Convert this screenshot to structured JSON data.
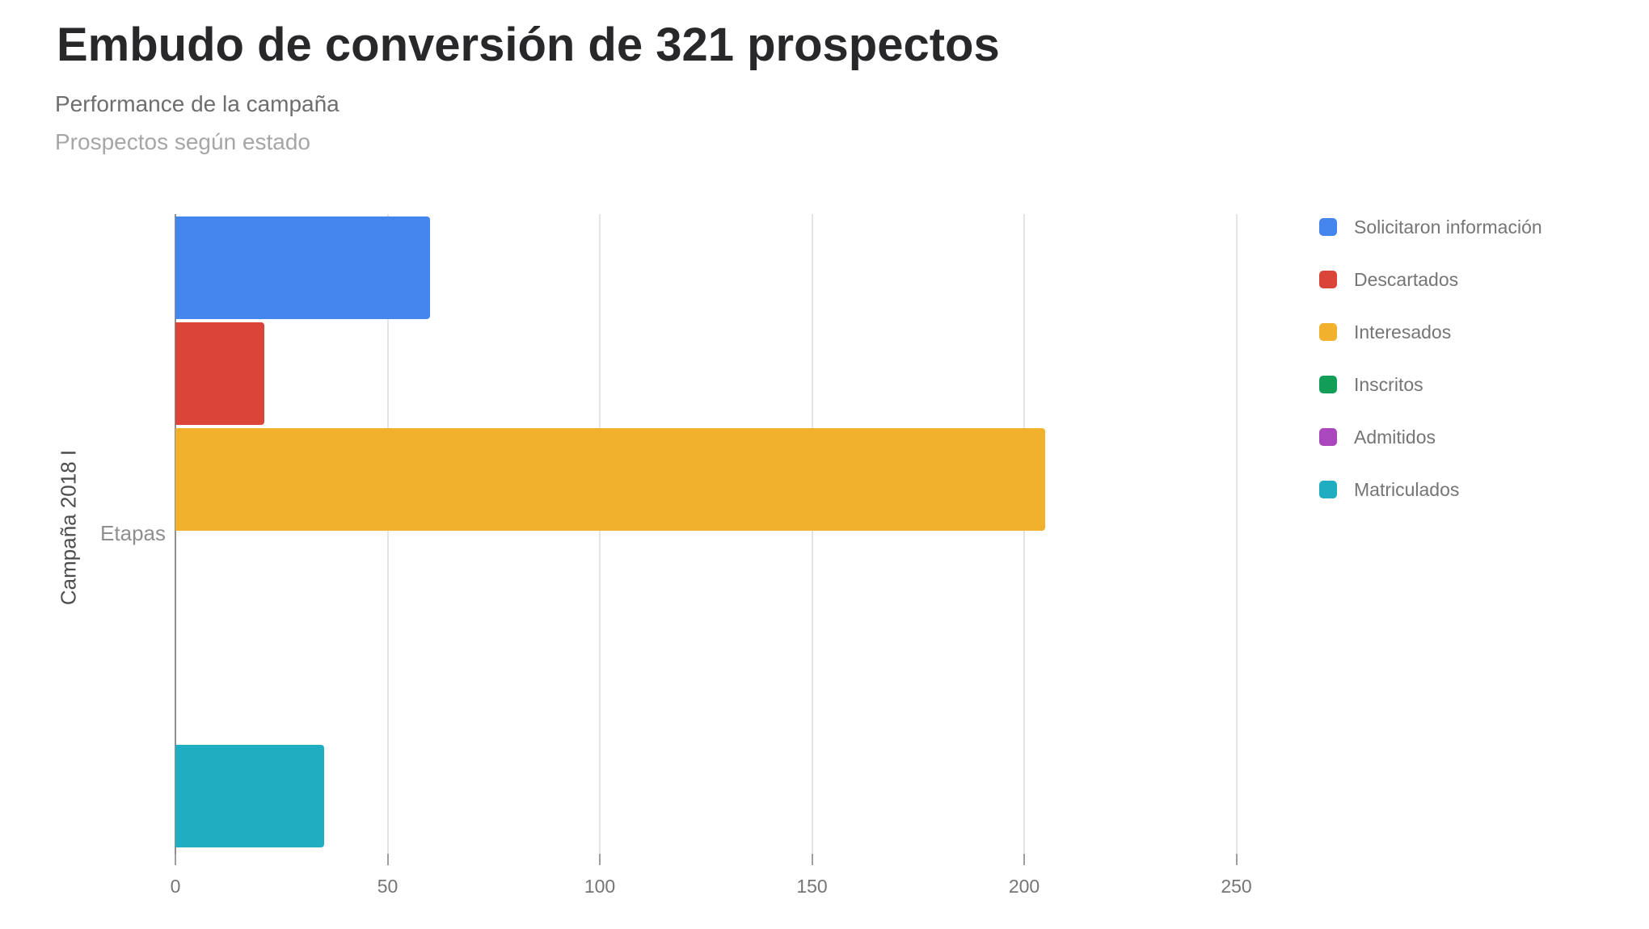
{
  "header": {
    "title": "Embudo de conversión de 321 prospectos",
    "subtitle": "Performance de la campaña",
    "description": "Prospectos según estado"
  },
  "axes": {
    "y_axis_title": "Campaña 2018 I",
    "y_category_label": "Etapas"
  },
  "chart_data": {
    "type": "bar",
    "orientation": "horizontal",
    "title": "Embudo de conversión de 321 prospectos",
    "subtitle": "Performance de la campaña",
    "note": "Prospectos según estado",
    "categories": [
      "Etapas"
    ],
    "y_axis_title": "Campaña 2018 I",
    "series": [
      {
        "name": "Solicitaron información",
        "values": [
          60
        ],
        "color": "#4486EE"
      },
      {
        "name": "Descartados",
        "values": [
          21
        ],
        "color": "#DB4539"
      },
      {
        "name": "Interesados",
        "values": [
          205
        ],
        "color": "#F1B12C"
      },
      {
        "name": "Inscritos",
        "values": [
          0
        ],
        "color": "#129D58"
      },
      {
        "name": "Admitidos",
        "values": [
          0
        ],
        "color": "#AB47BC"
      },
      {
        "name": "Matriculados",
        "values": [
          35
        ],
        "color": "#1EADC1"
      }
    ],
    "x_ticks": [
      0,
      50,
      100,
      150,
      200,
      250
    ],
    "xlim": [
      0,
      256
    ],
    "xlabel": "",
    "ylabel": "Campaña 2018 I",
    "grid": true,
    "legend_position": "right"
  },
  "colors": {
    "title": "#28282b",
    "subtitle": "#6e6e6e",
    "description": "#a6a6a6",
    "gridline": "#e4e4e4",
    "axis_baseline": "#8f8f8f",
    "tick_mark": "#9e9e9e",
    "tick_label": "#757575",
    "legend_text": "#757575",
    "y_axis_title": "#4d4d50",
    "y_category_label": "#8f8f8f",
    "background": "#ffffff"
  }
}
